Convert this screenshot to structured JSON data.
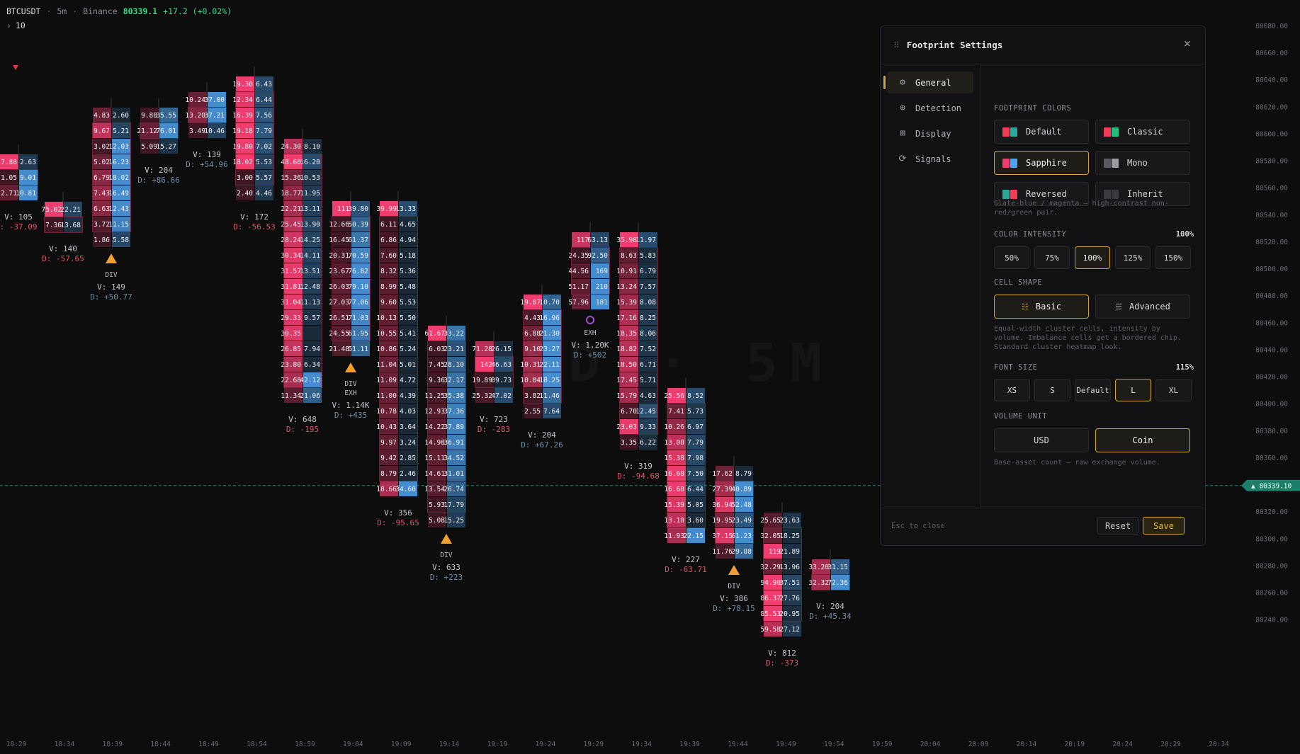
{
  "header": {
    "symbol": "BTCUSDT",
    "interval": "5m",
    "exchange": "Binance",
    "last_price": "80339.1",
    "change": "+17.2 (+0.02%)",
    "lookback": "10"
  },
  "watermark": "SD · 5M",
  "colors": {
    "buy": "#ef3d6f",
    "buy_dim": "#5c1f33",
    "sell": "#4fa3ee",
    "sell_dim": "#1f3346",
    "accent": "#d4a72c",
    "current_price": "#2ba58a",
    "up": "#39d98a",
    "down": "#d9596a",
    "marker_div": "#f0a030",
    "marker_exh": "#9a4fd0"
  },
  "price_axis": {
    "labels": [
      "80680.00",
      "80660.00",
      "80640.00",
      "80620.00",
      "80600.00",
      "80580.00",
      "80560.00",
      "80540.00",
      "80520.00",
      "80500.00",
      "80480.00",
      "80460.00",
      "80440.00",
      "80420.00",
      "80400.00",
      "80380.00",
      "80360.00",
      "80340.00",
      "80320.00",
      "80300.00",
      "80280.00",
      "80260.00",
      "80240.00"
    ],
    "current_label": "▲ 80339.10"
  },
  "time_axis": {
    "labels": [
      "18:29",
      "18:34",
      "18:39",
      "18:44",
      "18:49",
      "18:54",
      "18:59",
      "19:04",
      "19:09",
      "19:14",
      "19:19",
      "19:24",
      "19:29",
      "19:34",
      "19:39",
      "19:44",
      "19:49",
      "19:54",
      "19:59",
      "20:04",
      "20:09",
      "20:14",
      "20:19",
      "20:24",
      "20:29",
      "20:34"
    ]
  },
  "chart_data": {
    "type": "footprint",
    "candles": [
      {
        "time": "18:29",
        "bid": [
          "7.88",
          "1.05",
          "2.71"
        ],
        "ask": [
          "2.63",
          "9.01",
          "10.81"
        ],
        "volume": "V: 105",
        "delta": ": -37.09",
        "marker": ""
      },
      {
        "time": "18:34",
        "bid": [
          "75.02",
          "7.36"
        ],
        "ask": [
          "22.21",
          "13.68"
        ],
        "volume": "V: 140",
        "delta": "D: -57.65",
        "marker": ""
      },
      {
        "time": "18:39",
        "bid": [
          "4.83",
          "9.67",
          "3.02",
          "5.02",
          "6.79",
          "7.43",
          "6.63",
          "3.72",
          "1.86"
        ],
        "ask": [
          "2.60",
          "5.21",
          "12.03",
          "16.23",
          "18.02",
          "16.49",
          "12.43",
          "11.15",
          "5.58"
        ],
        "volume": "V: 149",
        "delta": "D: +50.77",
        "marker": "DIV"
      },
      {
        "time": "18:44",
        "bid": [
          "9.88",
          "21.12",
          "5.09"
        ],
        "ask": [
          "35.55",
          "76.01",
          "15.27"
        ],
        "volume": "V: 204",
        "delta": "D: +86.66",
        "marker": ""
      },
      {
        "time": "18:49",
        "bid": [
          "10.24",
          "13.20",
          "3.49"
        ],
        "ask": [
          "37.00",
          "37.21",
          "10.46"
        ],
        "volume": "V: 139",
        "delta": "D: +54.96",
        "marker": ""
      },
      {
        "time": "18:54",
        "bid": [
          "19.30",
          "12.34",
          "16.39",
          "19.18",
          "19.80",
          "18.02",
          "3.00",
          "2.40"
        ],
        "ask": [
          "6.43",
          "6.44",
          "7.56",
          "7.79",
          "7.02",
          "5.53",
          "5.57",
          "4.46"
        ],
        "volume": "V: 172",
        "delta": "D: -56.53",
        "marker": ""
      },
      {
        "time": "18:59",
        "bid": [
          "24.30",
          "48.60",
          "15.36",
          "18.77",
          "22.21",
          "25.45",
          "28.24",
          "30.34",
          "31.57",
          "31.81",
          "31.04",
          "29.33",
          "30.35",
          "26.85",
          "23.80",
          "22.68",
          "11.34"
        ],
        "ask": [
          "8.10",
          "16.20",
          "10.53",
          "11.95",
          "13.11",
          "13.90",
          "14.25",
          "14.11",
          "13.51",
          "12.48",
          "11.13",
          "9.57",
          "",
          "7.94",
          "6.34",
          "42.12",
          "21.06"
        ],
        "volume": "V: 648",
        "delta": "D: -195",
        "marker": ""
      },
      {
        "time": "19:04",
        "bid": [
          "111",
          "12.66",
          "16.45",
          "20.31",
          "23.67",
          "26.03",
          "27.03",
          "26.51",
          "24.55",
          "21.48"
        ],
        "ask": [
          "39.80",
          "50.39",
          "61.37",
          "70.59",
          "76.82",
          "79.10",
          "77.06",
          "71.03",
          "61.95",
          "51.11"
        ],
        "volume": "V: 1.14K",
        "delta": "D: +435",
        "marker": "DIV EXH"
      },
      {
        "time": "19:09",
        "bid": [
          "39.99",
          "6.11",
          "6.86",
          "7.60",
          "8.32",
          "8.99",
          "9.60",
          "10.13",
          "10.55",
          "10.86",
          "11.04",
          "11.09",
          "11.00",
          "10.78",
          "10.43",
          "9.97",
          "9.42",
          "8.79",
          "18.66"
        ],
        "ask": [
          "13.33",
          "4.65",
          "4.94",
          "5.18",
          "5.36",
          "5.48",
          "5.53",
          "5.50",
          "5.41",
          "5.24",
          "5.01",
          "4.72",
          "4.39",
          "4.03",
          "3.64",
          "3.24",
          "2.85",
          "2.46",
          "34.60"
        ],
        "volume": "V: 356",
        "delta": "D: -95.65",
        "marker": ""
      },
      {
        "time": "19:14",
        "bid": [
          "61.67",
          "6.03",
          "7.45",
          "9.36",
          "11.25",
          "12.93",
          "14.22",
          "14.98",
          "15.11",
          "14.61",
          "13.54",
          "5.93",
          "5.08"
        ],
        "ask": [
          "33.22",
          "23.21",
          "28.10",
          "32.17",
          "35.38",
          "37.36",
          "37.89",
          "36.91",
          "34.52",
          "31.01",
          "26.74",
          "17.79",
          "15.25"
        ],
        "volume": "V: 633",
        "delta": "D: +223",
        "marker": "DIV"
      },
      {
        "time": "19:19",
        "bid": [
          "71.28",
          "142",
          "19.89",
          "25.32"
        ],
        "ask": [
          "26.15",
          "46.63",
          "09.73",
          "47.02"
        ],
        "volume": "V: 723",
        "delta": "D: -283",
        "marker": ""
      },
      {
        "time": "19:24",
        "bid": [
          "19.87",
          "4.43",
          "6.88",
          "9.10",
          "10.31",
          "10.04",
          "3.82",
          "2.55"
        ],
        "ask": [
          "10.70",
          "16.96",
          "21.30",
          "23.27",
          "22.11",
          "18.25",
          "11.46",
          "7.64"
        ],
        "volume": "V: 204",
        "delta": "D: +67.26",
        "marker": ""
      },
      {
        "time": "19:29",
        "bid": [
          "117",
          "24.35",
          "44.56",
          "51.17",
          "57.96"
        ],
        "ask": [
          "63.13",
          "92.50",
          "169",
          "210",
          "181"
        ],
        "volume": "V: 1.20K",
        "delta": "D: +502",
        "marker": "EXH"
      },
      {
        "time": "19:34",
        "bid": [
          "35.98",
          "8.63",
          "10.91",
          "13.24",
          "15.39",
          "17.16",
          "18.35",
          "18.82",
          "18.50",
          "17.45",
          "15.79",
          "6.70",
          "23.03",
          "3.35"
        ],
        "ask": [
          "11.97",
          "5.83",
          "6.79",
          "7.57",
          "8.08",
          "8.25",
          "8.06",
          "7.52",
          "6.71",
          "5.71",
          "4.63",
          "12.45",
          "9.33",
          "6.22"
        ],
        "volume": "V: 319",
        "delta": "D: -94.68",
        "marker": ""
      },
      {
        "time": "19:39",
        "bid": [
          "25.56",
          "7.41",
          "10.26",
          "13.08",
          "15.38",
          "16.68",
          "16.68",
          "15.39",
          "13.10",
          "11.93"
        ],
        "ask": [
          "8.52",
          "5.73",
          "6.97",
          "7.79",
          "7.98",
          "7.50",
          "6.44",
          "5.05",
          "3.60",
          "22.15"
        ],
        "volume": "V: 227",
        "delta": "D: -63.71",
        "marker": ""
      },
      {
        "time": "19:44",
        "bid": [
          "17.62",
          "27.39",
          "36.94",
          "19.95",
          "37.15",
          "11.76"
        ],
        "ask": [
          "8.79",
          "40.89",
          "52.48",
          "23.49",
          "61.23",
          "29.88"
        ],
        "volume": "V: 386",
        "delta": "D: +78.15",
        "marker": "DIV"
      },
      {
        "time": "19:49",
        "bid": [
          "25.65",
          "32.05",
          "119",
          "32.29",
          "94.90",
          "86.37",
          "85.53",
          "59.58"
        ],
        "ask": [
          "23.63",
          "18.25",
          "21.89",
          "13.96",
          "37.51",
          "27.76",
          "20.95",
          "27.12"
        ],
        "volume": "V: 812",
        "delta": "D: -373",
        "marker": ""
      },
      {
        "time": "19:54",
        "bid": [
          "33.20",
          "32.32"
        ],
        "ask": [
          "31.15",
          "72.36"
        ],
        "volume": "V: 204",
        "delta": "D: +45.34",
        "marker": ""
      }
    ],
    "current_price": 80339.1
  },
  "panel": {
    "title": "Footprint Settings",
    "close": "×",
    "nav": [
      {
        "label": "General",
        "icon": "⚙"
      },
      {
        "label": "Detection",
        "icon": "⊕"
      },
      {
        "label": "Display",
        "icon": "⊞"
      },
      {
        "label": "Signals",
        "icon": "⟳"
      }
    ],
    "colors_title": "FOOTPRINT COLORS",
    "color_options": [
      {
        "label": "Default",
        "c1": "#ef3d56",
        "c2": "#2aa69a"
      },
      {
        "label": "Classic",
        "c1": "#ef3d56",
        "c2": "#22c07a"
      },
      {
        "label": "Sapphire",
        "c1": "#ef3d6f",
        "c2": "#4fa3ee"
      },
      {
        "label": "Mono",
        "c1": "#5a5a60",
        "c2": "#9a9aa0"
      },
      {
        "label": "Reversed",
        "c1": "#2aa69a",
        "c2": "#ef3d56"
      },
      {
        "label": "Inherit",
        "c1": "#3a3a3f",
        "c2": "#3a3a3f"
      }
    ],
    "colors_hint": "Slate-blue / magenta — high-contrast non-red/green pair.",
    "intensity_title": "COLOR INTENSITY",
    "intensity_value": "100%",
    "intensity_options": [
      "50%",
      "75%",
      "100%",
      "125%",
      "150%"
    ],
    "shape_title": "CELL SHAPE",
    "shape_options": [
      "Basic",
      "Advanced"
    ],
    "shape_hint": "Equal-width cluster cells, intensity by volume. Imbalance cells get a bordered chip. Standard cluster heatmap look.",
    "font_title": "FONT SIZE",
    "font_value": "115%",
    "font_options": [
      "XS",
      "S",
      "Default",
      "L",
      "XL"
    ],
    "unit_title": "VOLUME UNIT",
    "unit_options": [
      "USD",
      "Coin"
    ],
    "unit_hint": "Base-asset count — raw exchange volume.",
    "esc": "Esc to close",
    "reset": "Reset",
    "save": "Save"
  }
}
